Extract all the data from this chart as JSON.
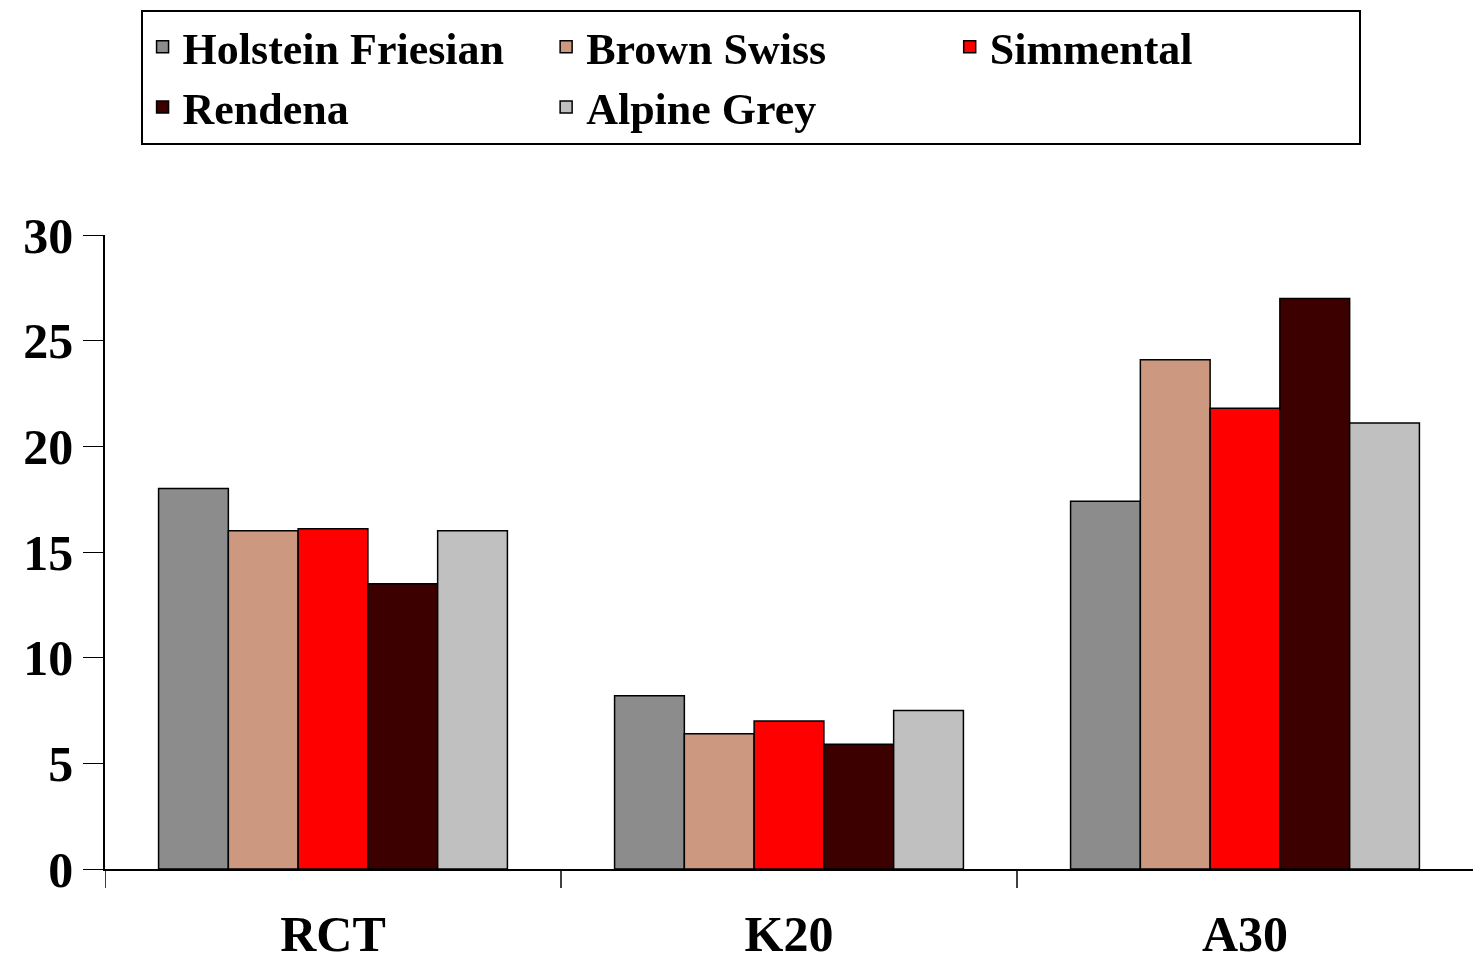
{
  "chart_data": {
    "type": "bar",
    "categories": [
      "RCT",
      "K20",
      "A30"
    ],
    "series": [
      {
        "name": "Holstein Friesian",
        "color": "#8c8c8c",
        "values": [
          18.0,
          8.2,
          17.4
        ]
      },
      {
        "name": "Brown Swiss",
        "color": "#cc9980",
        "values": [
          16.0,
          6.4,
          24.1
        ]
      },
      {
        "name": "Simmental",
        "color": "#ff0000",
        "values": [
          16.1,
          7.0,
          21.8
        ]
      },
      {
        "name": "Rendena",
        "color": "#3d0000",
        "values": [
          13.5,
          5.9,
          27.0
        ]
      },
      {
        "name": "Alpine Grey",
        "color": "#c0c0c0",
        "values": [
          16.0,
          7.5,
          21.1
        ]
      }
    ],
    "ylim": [
      0,
      30
    ],
    "yticks": [
      0,
      5,
      10,
      15,
      20,
      25,
      30
    ],
    "legend": "top"
  }
}
